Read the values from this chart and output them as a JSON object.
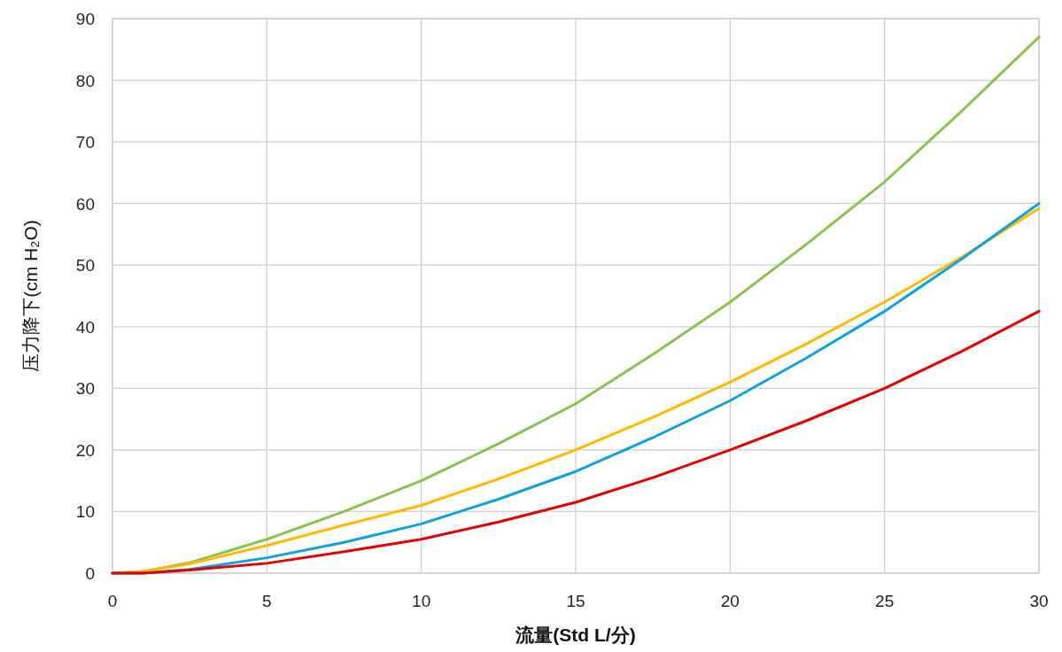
{
  "chart_data": {
    "type": "line",
    "xlabel": "流量(Std L/分)",
    "ylabel": "压力降下(cm H₂O)",
    "x": [
      0,
      1,
      2.5,
      5,
      7.5,
      10,
      12.5,
      15,
      17.5,
      20,
      22.5,
      25,
      27.5,
      30
    ],
    "series": [
      {
        "color": "#8cc152",
        "values": [
          0,
          0.3,
          1.7,
          5.5,
          10,
          15,
          21,
          27.5,
          35.5,
          44,
          53.5,
          63.5,
          75,
          87
        ]
      },
      {
        "color": "#ffb900",
        "values": [
          0,
          0.3,
          1.5,
          4.5,
          7.8,
          11,
          15.3,
          20,
          25.3,
          31,
          37.3,
          44,
          51.3,
          59.2
        ]
      },
      {
        "color": "#10a0dc",
        "values": [
          0,
          0,
          0.6,
          2.5,
          5,
          8,
          12,
          16.5,
          22,
          28,
          35,
          42.5,
          51,
          60
        ]
      },
      {
        "color": "#e00000",
        "values": [
          0,
          0,
          0.5,
          1.6,
          3.5,
          5.5,
          8.3,
          11.5,
          15.5,
          20,
          24.8,
          30,
          36,
          42.5
        ]
      }
    ],
    "xlim": [
      0,
      30
    ],
    "xticks": [
      0,
      5,
      10,
      15,
      20,
      25,
      30
    ],
    "ylim": [
      0,
      90
    ],
    "yticks": [
      0,
      10,
      20,
      30,
      40,
      50,
      60,
      70,
      80,
      90
    ],
    "grid": true,
    "marker": "none",
    "line_style": "solid"
  }
}
